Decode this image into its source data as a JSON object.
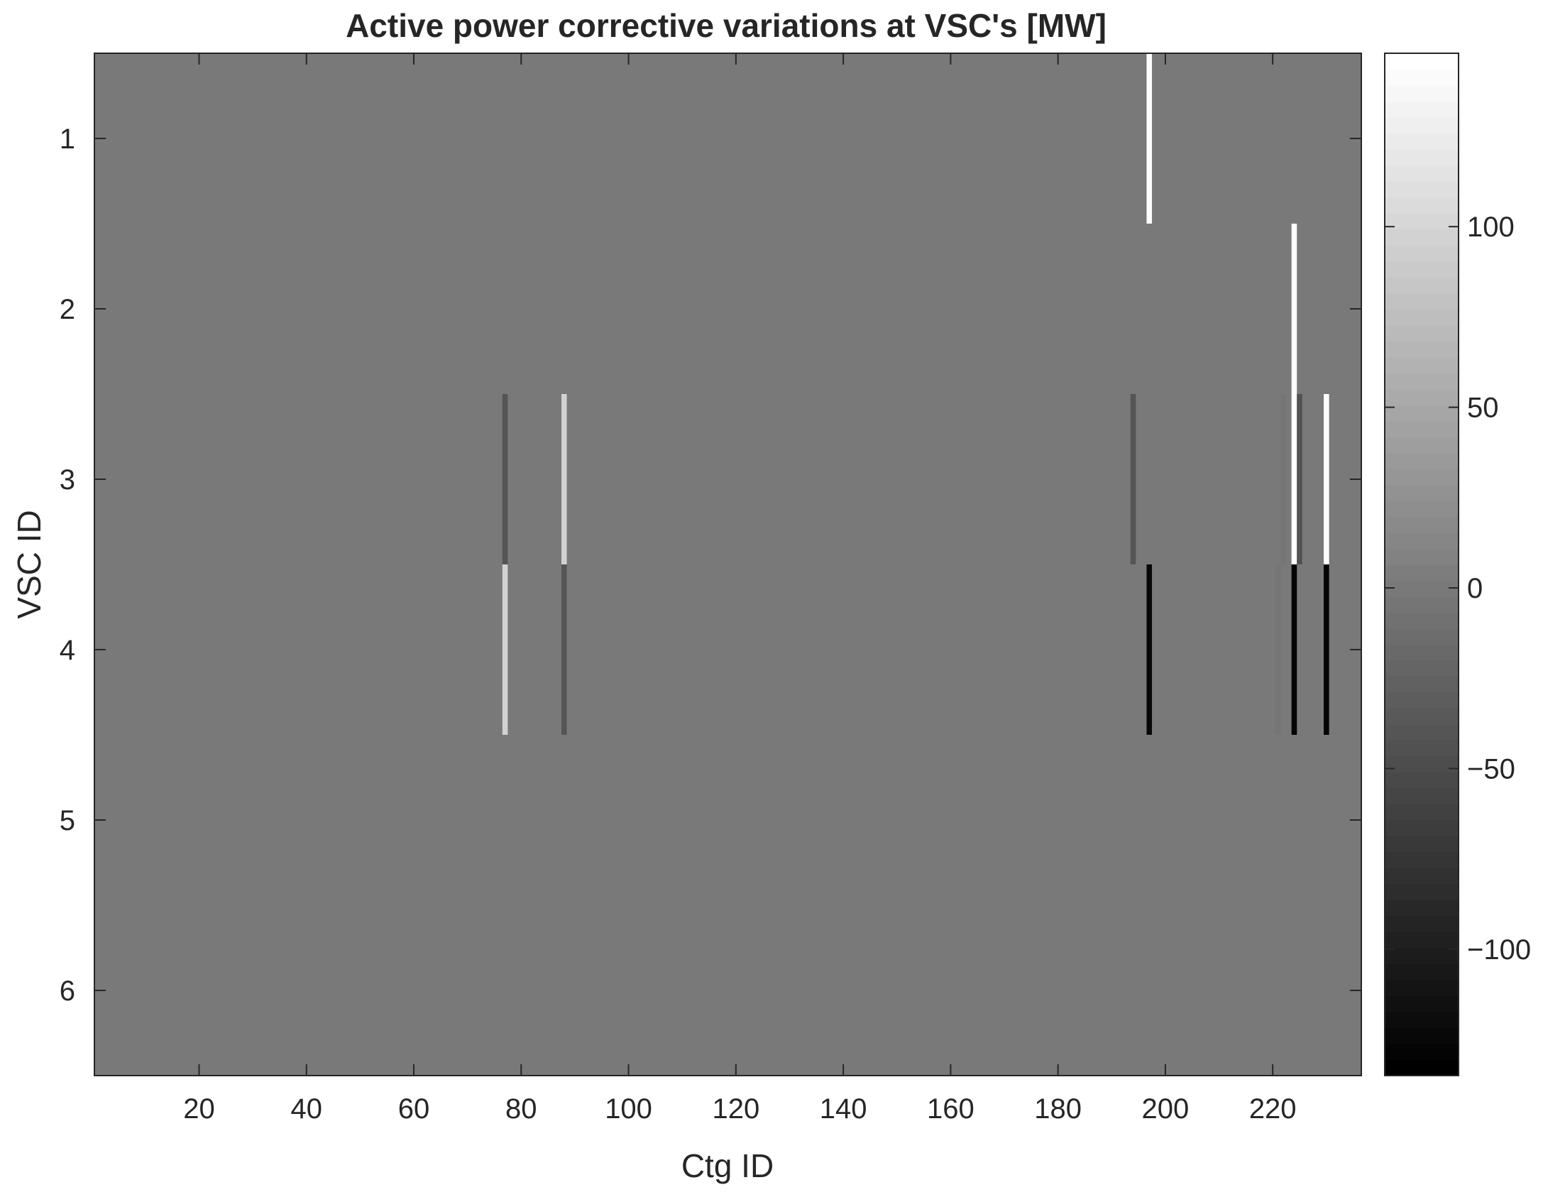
{
  "chart_data": {
    "type": "heatmap",
    "title": "Active power corrective variations at VSC's [MW]",
    "xlabel": "Ctg ID",
    "ylabel": "VSC ID",
    "xlim": [
      0.5,
      236.5
    ],
    "ylim": [
      0.5,
      6.5
    ],
    "y_reversed": true,
    "x_ticks": [
      20,
      40,
      60,
      80,
      100,
      120,
      140,
      160,
      180,
      200,
      220
    ],
    "y_ticks": [
      1,
      2,
      3,
      4,
      5,
      6
    ],
    "background_value": 0,
    "colormap": "gray",
    "clim": [
      -135,
      148
    ],
    "colorbar": {
      "ticks": [
        -100,
        -50,
        0,
        50,
        100
      ],
      "tick_labels": [
        "−100",
        "−50",
        "0",
        "50",
        "100"
      ],
      "levels": 64,
      "placement": "right"
    },
    "cells": [
      {
        "ctg": 77,
        "vsc": 3,
        "value": -40
      },
      {
        "ctg": 77,
        "vsc": 4,
        "value": 95
      },
      {
        "ctg": 88,
        "vsc": 3,
        "value": 95
      },
      {
        "ctg": 88,
        "vsc": 4,
        "value": -40
      },
      {
        "ctg": 194,
        "vsc": 3,
        "value": -40
      },
      {
        "ctg": 197,
        "vsc": 1,
        "value": 145
      },
      {
        "ctg": 197,
        "vsc": 4,
        "value": -125
      },
      {
        "ctg": 221,
        "vsc": 4,
        "value": -5
      },
      {
        "ctg": 222,
        "vsc": 3,
        "value": -5
      },
      {
        "ctg": 224,
        "vsc": 2,
        "value": 145
      },
      {
        "ctg": 224,
        "vsc": 3,
        "value": 145
      },
      {
        "ctg": 224,
        "vsc": 4,
        "value": -130
      },
      {
        "ctg": 225,
        "vsc": 3,
        "value": -45
      },
      {
        "ctg": 230,
        "vsc": 3,
        "value": 145
      },
      {
        "ctg": 230,
        "vsc": 4,
        "value": -130
      }
    ]
  }
}
